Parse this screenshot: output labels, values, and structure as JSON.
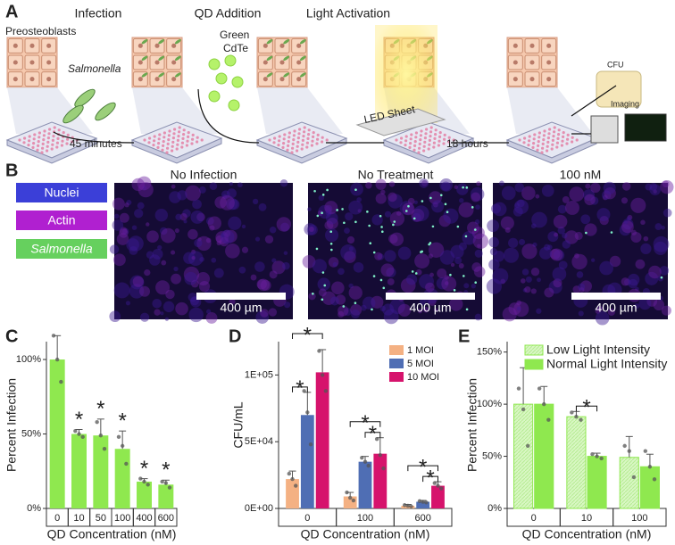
{
  "panel_a": {
    "label": "A",
    "steps": [
      "Infection",
      "QD Addition",
      "Light Activation"
    ],
    "cells": "Preosteoblasts",
    "bacteria": "Salmonella",
    "qd": [
      "Green",
      "CdTe"
    ],
    "led": "LED Sheet",
    "cfu": "CFU",
    "imaging": "Imaging",
    "time1": "45 minutes",
    "time2": "18 hours"
  },
  "panel_b": {
    "label": "B",
    "legend": [
      "Nuclei",
      "Actin",
      "Salmonella"
    ],
    "images": [
      "No Infection",
      "No Treatment",
      "100 nM"
    ],
    "scale_bar": "400 µm"
  },
  "chart_data": [
    {
      "type": "bar",
      "panel": "C",
      "categories": [
        "0",
        "10",
        "50",
        "100",
        "400",
        "600"
      ],
      "values": [
        100,
        50,
        49,
        40,
        18,
        16
      ],
      "errors": [
        16,
        3,
        11,
        12,
        2,
        3
      ],
      "points": [
        [
          116,
          100,
          85
        ],
        [
          52,
          50,
          48
        ],
        [
          58,
          49,
          40
        ],
        [
          48,
          42,
          30
        ],
        [
          20,
          18,
          16
        ],
        [
          18,
          17,
          14
        ]
      ],
      "color": "#8fe84f",
      "ylim": [
        0,
        112
      ],
      "yticks": [
        {
          "value": 0,
          "label": "0%"
        },
        {
          "value": 50,
          "label": "50%"
        },
        {
          "value": 100,
          "label": "100%"
        }
      ],
      "ylabel": "Percent Infection",
      "xlabel": "QD Concentration (nM)",
      "annotations": [
        "*",
        "*",
        "*",
        "*",
        "*"
      ]
    },
    {
      "type": "bar",
      "panel": "D",
      "categories": [
        "0",
        "100",
        "600"
      ],
      "series": [
        {
          "name": "1 MOI",
          "color": "#f4b183",
          "values": [
            22000,
            9000,
            2000
          ],
          "errors": [
            6000,
            3000,
            1000
          ],
          "points": [
            [
              26000,
              22000,
              17000
            ],
            [
              12000,
              8000,
              6000
            ],
            [
              2500,
              2000,
              1500
            ]
          ]
        },
        {
          "name": "5 MOI",
          "color": "#4f6eb4",
          "values": [
            70000,
            35000,
            5000
          ],
          "errors": [
            17000,
            4000,
            1000
          ],
          "points": [
            [
              88000,
              72000,
              48000
            ],
            [
              38000,
              35000,
              32000
            ],
            [
              5500,
              5000,
              4500
            ]
          ]
        },
        {
          "name": "10 MOI",
          "color": "#d6136c",
          "values": [
            102000,
            41000,
            17000
          ],
          "errors": [
            17000,
            12000,
            3000
          ],
          "points": [
            [
              118000,
              100000,
              88000
            ],
            [
              52000,
              40000,
              30000
            ],
            [
              19000,
              17000,
              15000
            ]
          ]
        }
      ],
      "ylim": [
        0,
        125000
      ],
      "yticks": [
        {
          "value": 0,
          "label": "0E+00"
        },
        {
          "value": 50000,
          "label": "5E+04"
        },
        {
          "value": 100000,
          "label": "1E+05"
        }
      ],
      "ylabel": "CFU/mL",
      "xlabel": "QD Concentration (nM)",
      "legend": "upper right",
      "annotations": [
        "*",
        "*",
        "*",
        "*",
        "*",
        "*"
      ]
    },
    {
      "type": "bar",
      "panel": "E",
      "categories": [
        "0",
        "10",
        "100"
      ],
      "series": [
        {
          "name": "Low Light Intensity",
          "color": "#d9f7c4",
          "values": [
            100,
            88,
            49
          ],
          "errors": [
            35,
            5,
            20
          ],
          "points": [
            [
              115,
              95,
              60
            ],
            [
              92,
              88,
              85
            ],
            [
              60,
              55,
              30
            ]
          ]
        },
        {
          "name": "Normal Light Intensity",
          "color": "#8fe84f",
          "values": [
            100,
            50,
            40
          ],
          "errors": [
            17,
            3,
            12
          ],
          "points": [
            [
              115,
              100,
              85
            ],
            [
              52,
              50,
              48
            ],
            [
              55,
              40,
              28
            ]
          ]
        }
      ],
      "ylim": [
        0,
        160
      ],
      "yticks": [
        {
          "value": 0,
          "label": "0%"
        },
        {
          "value": 50,
          "label": "50%"
        },
        {
          "value": 100,
          "label": "100%"
        },
        {
          "value": 150,
          "label": "150%"
        }
      ],
      "ylabel": "Percent Infection",
      "xlabel": "QD Concentration (nM)",
      "legend": "upper left",
      "annotations": [
        "*"
      ]
    }
  ]
}
